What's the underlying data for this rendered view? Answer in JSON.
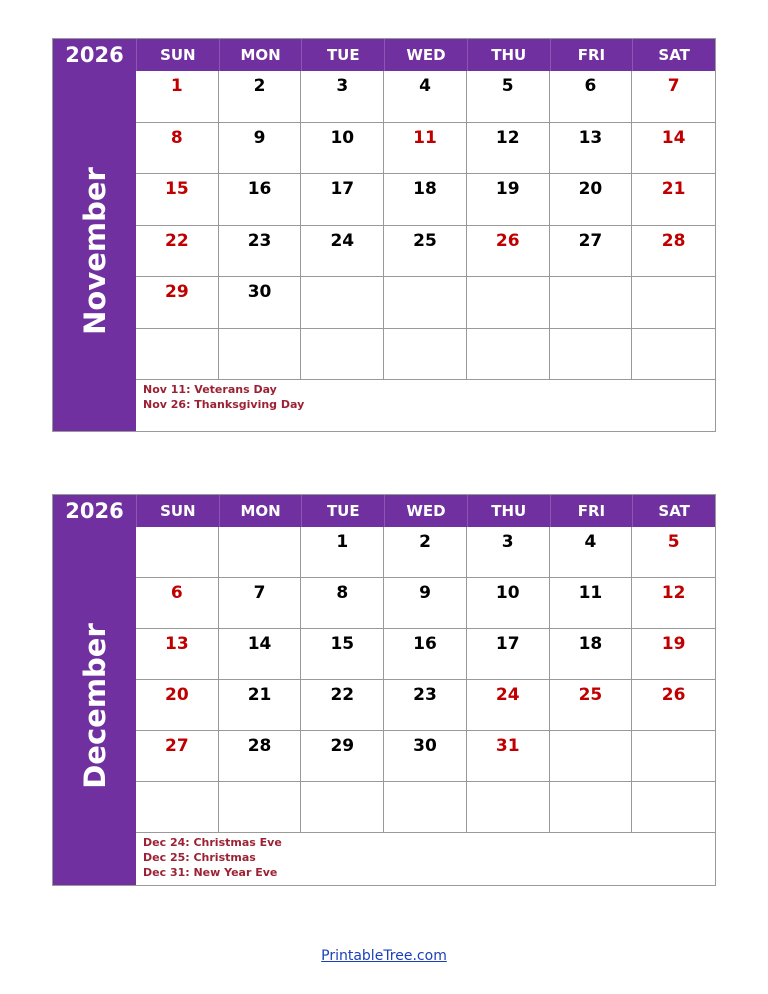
{
  "colors": {
    "header": "#7030a0",
    "holiday": "#c00000",
    "notes": "#9b2235"
  },
  "weekdays": [
    "SUN",
    "MON",
    "TUE",
    "WED",
    "THU",
    "FRI",
    "SAT"
  ],
  "calendars": [
    {
      "year": "2026",
      "month": "November",
      "days": [
        "1",
        "2",
        "3",
        "4",
        "5",
        "6",
        "7",
        "8",
        "9",
        "10",
        "11",
        "12",
        "13",
        "14",
        "15",
        "16",
        "17",
        "18",
        "19",
        "20",
        "21",
        "22",
        "23",
        "24",
        "25",
        "26",
        "27",
        "28",
        "29",
        "30",
        "",
        "",
        "",
        "",
        "",
        "",
        "",
        "",
        "",
        "",
        "",
        ""
      ],
      "red": [
        "1",
        "7",
        "8",
        "11",
        "14",
        "15",
        "21",
        "22",
        "26",
        "28",
        "29"
      ],
      "notes": [
        "Nov 11: Veterans Day",
        "Nov 26: Thanksgiving Day"
      ]
    },
    {
      "year": "2026",
      "month": "December",
      "days": [
        "",
        "",
        "1",
        "2",
        "3",
        "4",
        "5",
        "6",
        "7",
        "8",
        "9",
        "10",
        "11",
        "12",
        "13",
        "14",
        "15",
        "16",
        "17",
        "18",
        "19",
        "20",
        "21",
        "22",
        "23",
        "24",
        "25",
        "26",
        "27",
        "28",
        "29",
        "30",
        "31",
        "",
        "",
        "",
        "",
        "",
        "",
        "",
        "",
        ""
      ],
      "red": [
        "5",
        "6",
        "12",
        "13",
        "19",
        "20",
        "24",
        "25",
        "26",
        "27",
        "31"
      ],
      "notes": [
        "Dec 24: Christmas Eve",
        "Dec 25: Christmas",
        "Dec 31: New Year Eve"
      ]
    }
  ],
  "footer": "PrintableTree.com"
}
